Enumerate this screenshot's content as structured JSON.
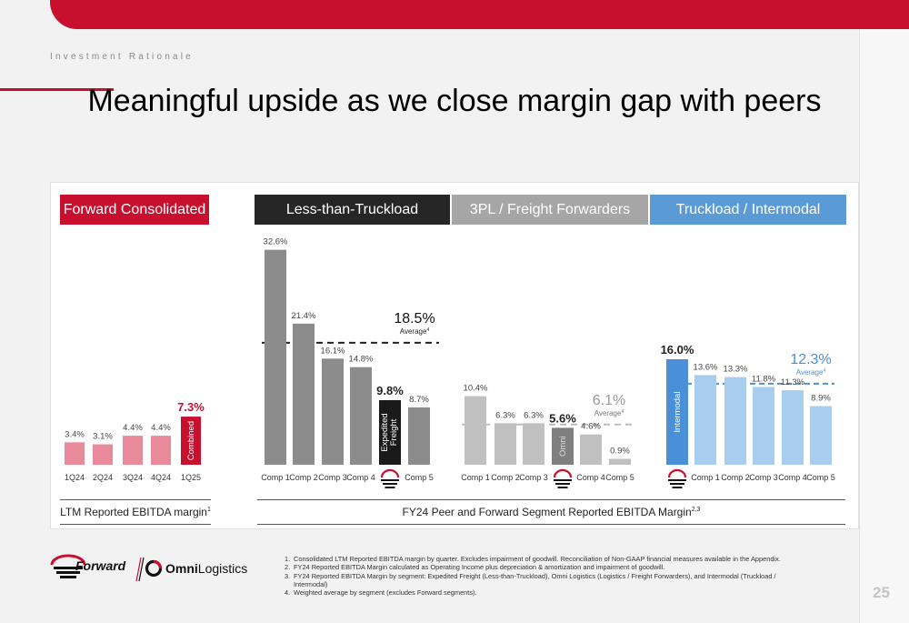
{
  "slide": {
    "section": "Investment Rationale",
    "title": "Meaningful upside as we close margin gap with peers",
    "page_number": "25"
  },
  "colors": {
    "brand_red": "#c8102e",
    "ltl_dark": "#262626",
    "threepl_gray": "#a6a6a6",
    "tl_blue": "#5b9bd5",
    "red_bar_light": "#e88a9a",
    "ltl_bar": "#8c8c8c",
    "threepl_bar": "#c0c0c0",
    "tl_bar_light": "#a9cdee",
    "forward_bar_ltl": "#1a1a1a",
    "forward_bar_3pl": "#7f7f7f",
    "forward_bar_tl": "#4a90d9"
  },
  "segments": [
    {
      "name": "Forward Consolidated",
      "color": "#c8102e"
    },
    {
      "name": "Less-than-Truckload",
      "color": "#262626"
    },
    {
      "name": "3PL / Freight Forwarders",
      "color": "#a6a6a6"
    },
    {
      "name": "Truckload / Intermodal",
      "color": "#5b9bd5"
    }
  ],
  "footer": {
    "left_label": "LTM Reported EBITDA margin",
    "left_sup": "1",
    "right_label": "FY24 Peer and Forward Segment Reported EBITDA Margin",
    "right_sup": "2,3"
  },
  "logos": {
    "forward": "Forward",
    "omni_bold": "Omni",
    "omni_light": "Logistics"
  },
  "footnotes": [
    {
      "num": "1.",
      "text": "Consolidated LTM Reported EBITDA margin by quarter. Excludes impairment of goodwill. Reconciliation of Non-GAAP financial measures available in the Appendix."
    },
    {
      "num": "2.",
      "text": "FY24 Reported EBITDA Margin calculated as Operating Income plus depreciation & amortization and impairment of goodwill."
    },
    {
      "num": "3.",
      "text": "FY24 Reported EBITDA Margin by segment: Expedited Freight (Less-than-Truckload), Omni Logistics (Logistics / Freight Forwarders), and Intermodal (Truckload / Intermodal)"
    },
    {
      "num": "4.",
      "text": "Weighted average by segment (excludes Forward segments)."
    }
  ],
  "chart_data": {
    "type": "bar",
    "ylim": [
      0,
      35
    ],
    "groups": [
      {
        "segment": "Forward Consolidated",
        "categories": [
          "1Q24",
          "2Q24",
          "3Q24",
          "4Q24",
          "1Q25"
        ],
        "values": [
          3.4,
          3.1,
          4.4,
          4.4,
          7.3
        ],
        "labels": [
          "3.4%",
          "3.1%",
          "4.4%",
          "4.4%",
          "7.3%"
        ],
        "highlight_index": 4,
        "highlight_bar_text": "Combined"
      },
      {
        "segment": "Less-than-Truckload",
        "categories": [
          "Comp 1",
          "Comp 2",
          "Comp 3",
          "Comp 4",
          "",
          "Comp 5"
        ],
        "values": [
          32.6,
          21.4,
          16.1,
          14.8,
          9.8,
          8.7
        ],
        "labels": [
          "32.6%",
          "21.4%",
          "16.1%",
          "14.8%",
          "9.8%",
          "8.7%"
        ],
        "highlight_index": 4,
        "highlight_bar_text": [
          "Expedited",
          "Freight"
        ],
        "average": 18.5,
        "average_label": "18.5%",
        "average_caption": "Average",
        "average_sup": "4"
      },
      {
        "segment": "3PL / Freight Forwarders",
        "categories": [
          "Comp 1",
          "Comp 2",
          "Comp 3",
          "",
          "Comp 4",
          "Comp 5"
        ],
        "values": [
          10.4,
          6.3,
          6.3,
          5.6,
          4.6,
          0.9
        ],
        "labels": [
          "10.4%",
          "6.3%",
          "6.3%",
          "5.6%",
          "4.6%",
          "0.9%"
        ],
        "highlight_index": 3,
        "highlight_bar_text": "Omni",
        "average": 6.1,
        "average_label": "6.1%",
        "average_caption": "Average",
        "average_sup": "4"
      },
      {
        "segment": "Truckload / Intermodal",
        "categories": [
          "",
          "Comp 1",
          "Comp 2",
          "Comp 3",
          "Comp 4",
          "Comp 5"
        ],
        "values": [
          16.0,
          13.6,
          13.3,
          11.8,
          11.3,
          8.9
        ],
        "labels": [
          "16.0%",
          "13.6%",
          "13.3%",
          "11.8%",
          "11.3%",
          "8.9%"
        ],
        "highlight_index": 0,
        "highlight_bar_text": "Intermodal",
        "average": 12.3,
        "average_label": "12.3%",
        "average_caption": "Average",
        "average_sup": "4"
      }
    ]
  }
}
